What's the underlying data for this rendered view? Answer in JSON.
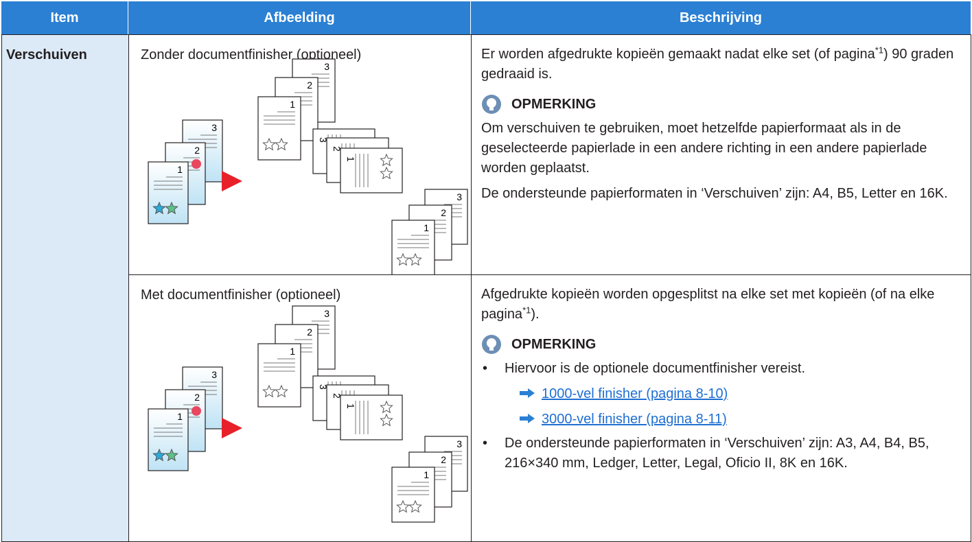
{
  "table": {
    "headers": [
      "Item",
      "Afbeelding",
      "Beschrijving"
    ],
    "item": "Verschuiven",
    "rows": [
      {
        "image_caption": "Zonder documentfinisher (optioneel)",
        "description": {
          "before": "Er worden afgedrukte kopieën gemaakt nadat elke set (of pagina",
          "sup": "*1",
          "after": ") 90 graden gedraaid is."
        },
        "note": {
          "heading": "OPMERKING",
          "paragraphs": [
            "Om verschuiven te gebruiken, moet hetzelfde papierformaat als in de geselecteerde papierlade in een andere richting in een andere papierlade worden geplaatst.",
            "De ondersteunde papierformaten in ‘Verschuiven’ zijn: A4, B5, Letter en 16K."
          ]
        }
      },
      {
        "image_caption": "Met documentfinisher (optioneel)",
        "description": {
          "before": "Afgedrukte kopieën worden opgesplitst na elke set met kopieën (of na elke pagina",
          "sup": "*1",
          "after": ")."
        },
        "note": {
          "heading": "OPMERKING",
          "bullets": [
            {
              "text": "Hiervoor is de optionele documentfinisher vereist.",
              "links": [
                "1000-vel finisher (pagina 8-10)",
                "3000-vel finisher (pagina 8-11)"
              ]
            },
            {
              "text": "De ondersteunde papierformaten in ‘Verschuiven’ zijn: A3, A4, B4, B5, 216×340  mm, Ledger, Letter, Legal, Oficio  II, 8K en 16K."
            }
          ]
        }
      }
    ],
    "figure_page_labels": [
      "1",
      "2",
      "3"
    ]
  }
}
